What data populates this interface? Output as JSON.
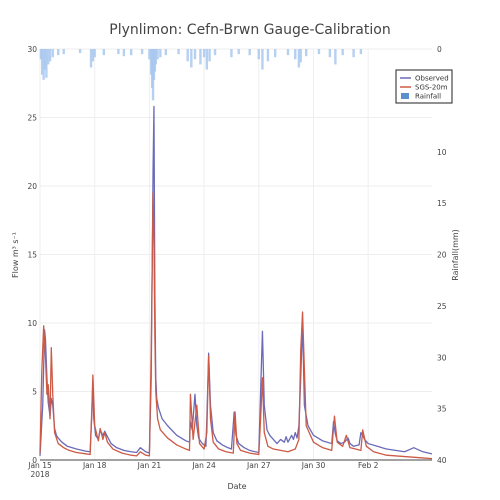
{
  "chart_data": {
    "type": "line",
    "title": "Plynlimon: Cefn-Brwn Gauge-Calibration",
    "xlabel": "Date",
    "ylabel_left": "Flow m³ s⁻¹",
    "ylabel_right": "Rainfall(mm)",
    "x_range": [
      0,
      21.5
    ],
    "ylim_left": [
      0,
      30
    ],
    "ylim_right": [
      0,
      40
    ],
    "right_axis_reversed": true,
    "x_ticks": [
      {
        "t": 0,
        "label": "Jan 15",
        "sub": "2018"
      },
      {
        "t": 3,
        "label": "Jan 18",
        "sub": ""
      },
      {
        "t": 6,
        "label": "Jan 21",
        "sub": ""
      },
      {
        "t": 9,
        "label": "Jan 24",
        "sub": ""
      },
      {
        "t": 12,
        "label": "Jan 27",
        "sub": ""
      },
      {
        "t": 15,
        "label": "Jan 30",
        "sub": ""
      },
      {
        "t": 18,
        "label": "Feb 2",
        "sub": ""
      }
    ],
    "y_ticks_left": [
      0,
      5,
      10,
      15,
      20,
      25,
      30
    ],
    "y_ticks_right": [
      0,
      5,
      10,
      15,
      20,
      25,
      30,
      35,
      40
    ],
    "legend_placement": "top-right",
    "series": [
      {
        "name": "Observed",
        "color": "#6a6ab8",
        "x": [
          0,
          0.15,
          0.25,
          0.3,
          0.38,
          0.45,
          0.55,
          0.62,
          0.7,
          0.8,
          0.9,
          1.0,
          1.2,
          1.5,
          2.0,
          2.5,
          2.75,
          2.85,
          2.9,
          2.95,
          3.05,
          3.2,
          3.3,
          3.45,
          3.55,
          3.7,
          3.9,
          4.2,
          4.6,
          5.0,
          5.3,
          5.5,
          5.8,
          6.0,
          6.1,
          6.2,
          6.25,
          6.3,
          6.35,
          6.4,
          6.5,
          6.7,
          7.0,
          7.5,
          8.0,
          8.2,
          8.25,
          8.35,
          8.5,
          8.6,
          8.7,
          8.9,
          9.1,
          9.15,
          9.25,
          9.35,
          9.5,
          9.7,
          10.0,
          10.3,
          10.5,
          10.65,
          10.75,
          10.9,
          11.2,
          11.5,
          11.8,
          12.0,
          12.1,
          12.2,
          12.3,
          12.45,
          12.6,
          12.8,
          13.0,
          13.2,
          13.4,
          13.5,
          13.6,
          13.8,
          13.9,
          14.0,
          14.1,
          14.2,
          14.3,
          14.4,
          14.5,
          14.7,
          15.0,
          15.5,
          16.0,
          16.1,
          16.2,
          16.3,
          16.5,
          16.7,
          16.9,
          17.0,
          17.2,
          17.5,
          17.6,
          17.7,
          17.8,
          18.0,
          18.5,
          19.0,
          19.5,
          20.0,
          20.5,
          21.0,
          21.5
        ],
        "y": [
          0.3,
          4.0,
          9.5,
          8.8,
          6.0,
          4.2,
          3.2,
          4.5,
          4.0,
          2.3,
          1.8,
          1.6,
          1.3,
          1.0,
          0.8,
          0.65,
          0.6,
          3.5,
          5.8,
          3.0,
          1.8,
          1.5,
          2.2,
          1.8,
          2.1,
          1.7,
          1.2,
          0.9,
          0.7,
          0.6,
          0.55,
          0.9,
          0.6,
          0.5,
          6.0,
          21.0,
          25.8,
          12.0,
          6.0,
          4.5,
          3.8,
          3.0,
          2.5,
          1.8,
          1.4,
          1.3,
          2.8,
          2.2,
          4.8,
          2.5,
          1.6,
          1.2,
          1.0,
          3.0,
          7.8,
          4.0,
          2.0,
          1.4,
          1.1,
          0.9,
          0.8,
          3.5,
          1.8,
          1.2,
          0.9,
          0.7,
          0.6,
          0.55,
          5.0,
          9.4,
          4.0,
          2.2,
          1.8,
          1.5,
          1.2,
          1.5,
          1.3,
          1.7,
          1.3,
          1.8,
          1.5,
          2.0,
          1.6,
          2.5,
          6.0,
          10.1,
          4.0,
          2.5,
          1.8,
          1.4,
          1.2,
          2.8,
          1.9,
          1.4,
          1.2,
          1.3,
          1.6,
          1.2,
          1.0,
          1.1,
          2.0,
          1.8,
          1.5,
          1.2,
          1.0,
          0.8,
          0.7,
          0.6,
          0.9,
          0.6,
          0.45
        ]
      },
      {
        "name": "SGS-20m",
        "color": "#cc5a45",
        "x": [
          0,
          0.1,
          0.2,
          0.3,
          0.38,
          0.45,
          0.55,
          0.62,
          0.7,
          0.8,
          1.0,
          1.3,
          1.6,
          2.0,
          2.5,
          2.75,
          2.85,
          2.9,
          3.0,
          3.2,
          3.3,
          3.45,
          3.55,
          3.7,
          4.0,
          4.5,
          5.0,
          5.3,
          5.5,
          5.8,
          6.0,
          6.1,
          6.2,
          6.25,
          6.3,
          6.35,
          6.45,
          6.6,
          7.0,
          7.5,
          8.0,
          8.2,
          8.25,
          8.4,
          8.6,
          8.75,
          9.0,
          9.15,
          9.25,
          9.35,
          9.5,
          9.8,
          10.2,
          10.6,
          10.7,
          10.8,
          11.0,
          11.5,
          12.0,
          12.1,
          12.2,
          12.3,
          12.5,
          12.8,
          13.2,
          13.6,
          14.0,
          14.2,
          14.3,
          14.4,
          14.6,
          15.0,
          15.5,
          16.0,
          16.15,
          16.3,
          16.6,
          16.8,
          17.0,
          17.3,
          17.6,
          17.7,
          17.9,
          18.3,
          19.0,
          20.0,
          21.0,
          21.5
        ],
        "y": [
          0.5,
          6.5,
          9.8,
          7.5,
          4.8,
          5.5,
          3.0,
          8.2,
          4.8,
          2.0,
          1.2,
          0.9,
          0.7,
          0.55,
          0.45,
          0.4,
          4.0,
          6.2,
          2.5,
          1.4,
          2.3,
          1.5,
          2.0,
          1.3,
          0.8,
          0.5,
          0.35,
          0.3,
          0.6,
          0.35,
          0.3,
          8.0,
          19.5,
          16.0,
          9.0,
          5.0,
          3.0,
          2.2,
          1.6,
          1.1,
          0.8,
          0.7,
          4.8,
          1.5,
          4.0,
          1.2,
          0.8,
          2.0,
          7.6,
          3.0,
          1.3,
          0.8,
          0.6,
          0.5,
          3.5,
          1.2,
          0.7,
          0.5,
          0.4,
          3.0,
          6.0,
          2.0,
          1.0,
          0.8,
          0.7,
          0.6,
          0.8,
          1.5,
          8.0,
          10.8,
          2.5,
          1.3,
          0.9,
          0.7,
          3.2,
          1.3,
          1.0,
          1.8,
          0.9,
          0.8,
          0.7,
          2.2,
          1.0,
          0.6,
          0.35,
          0.25,
          0.15,
          0.1
        ]
      },
      {
        "name": "Rainfall",
        "type": "bar",
        "color": "#a9c8ee",
        "x": [
          0.05,
          0.12,
          0.2,
          0.28,
          0.35,
          0.45,
          0.55,
          0.7,
          1.0,
          1.3,
          2.2,
          2.8,
          2.9,
          3.0,
          3.5,
          4.3,
          4.6,
          5.0,
          5.6,
          6.0,
          6.1,
          6.15,
          6.2,
          6.25,
          6.3,
          6.35,
          6.45,
          6.6,
          6.9,
          7.6,
          8.1,
          8.3,
          8.5,
          8.8,
          9.0,
          9.15,
          9.3,
          9.6,
          10.5,
          10.9,
          11.5,
          12.0,
          12.2,
          12.5,
          12.9,
          13.6,
          14.0,
          14.2,
          14.3,
          14.6,
          15.3,
          15.9,
          16.2,
          16.6,
          17.2,
          17.6
        ],
        "y": [
          1.0,
          2.5,
          3.0,
          2.0,
          2.8,
          1.5,
          1.2,
          0.8,
          0.6,
          0.5,
          0.4,
          1.8,
          1.2,
          0.8,
          0.6,
          0.5,
          0.7,
          0.6,
          0.5,
          1.0,
          2.5,
          3.8,
          5.0,
          3.0,
          2.2,
          1.5,
          1.0,
          0.8,
          0.6,
          0.5,
          1.2,
          1.8,
          1.0,
          1.5,
          0.8,
          2.0,
          1.2,
          0.6,
          0.8,
          0.5,
          0.6,
          1.0,
          2.0,
          1.2,
          0.8,
          0.6,
          1.0,
          1.8,
          1.3,
          0.7,
          0.5,
          0.8,
          1.5,
          0.6,
          0.8,
          0.5
        ]
      }
    ]
  }
}
